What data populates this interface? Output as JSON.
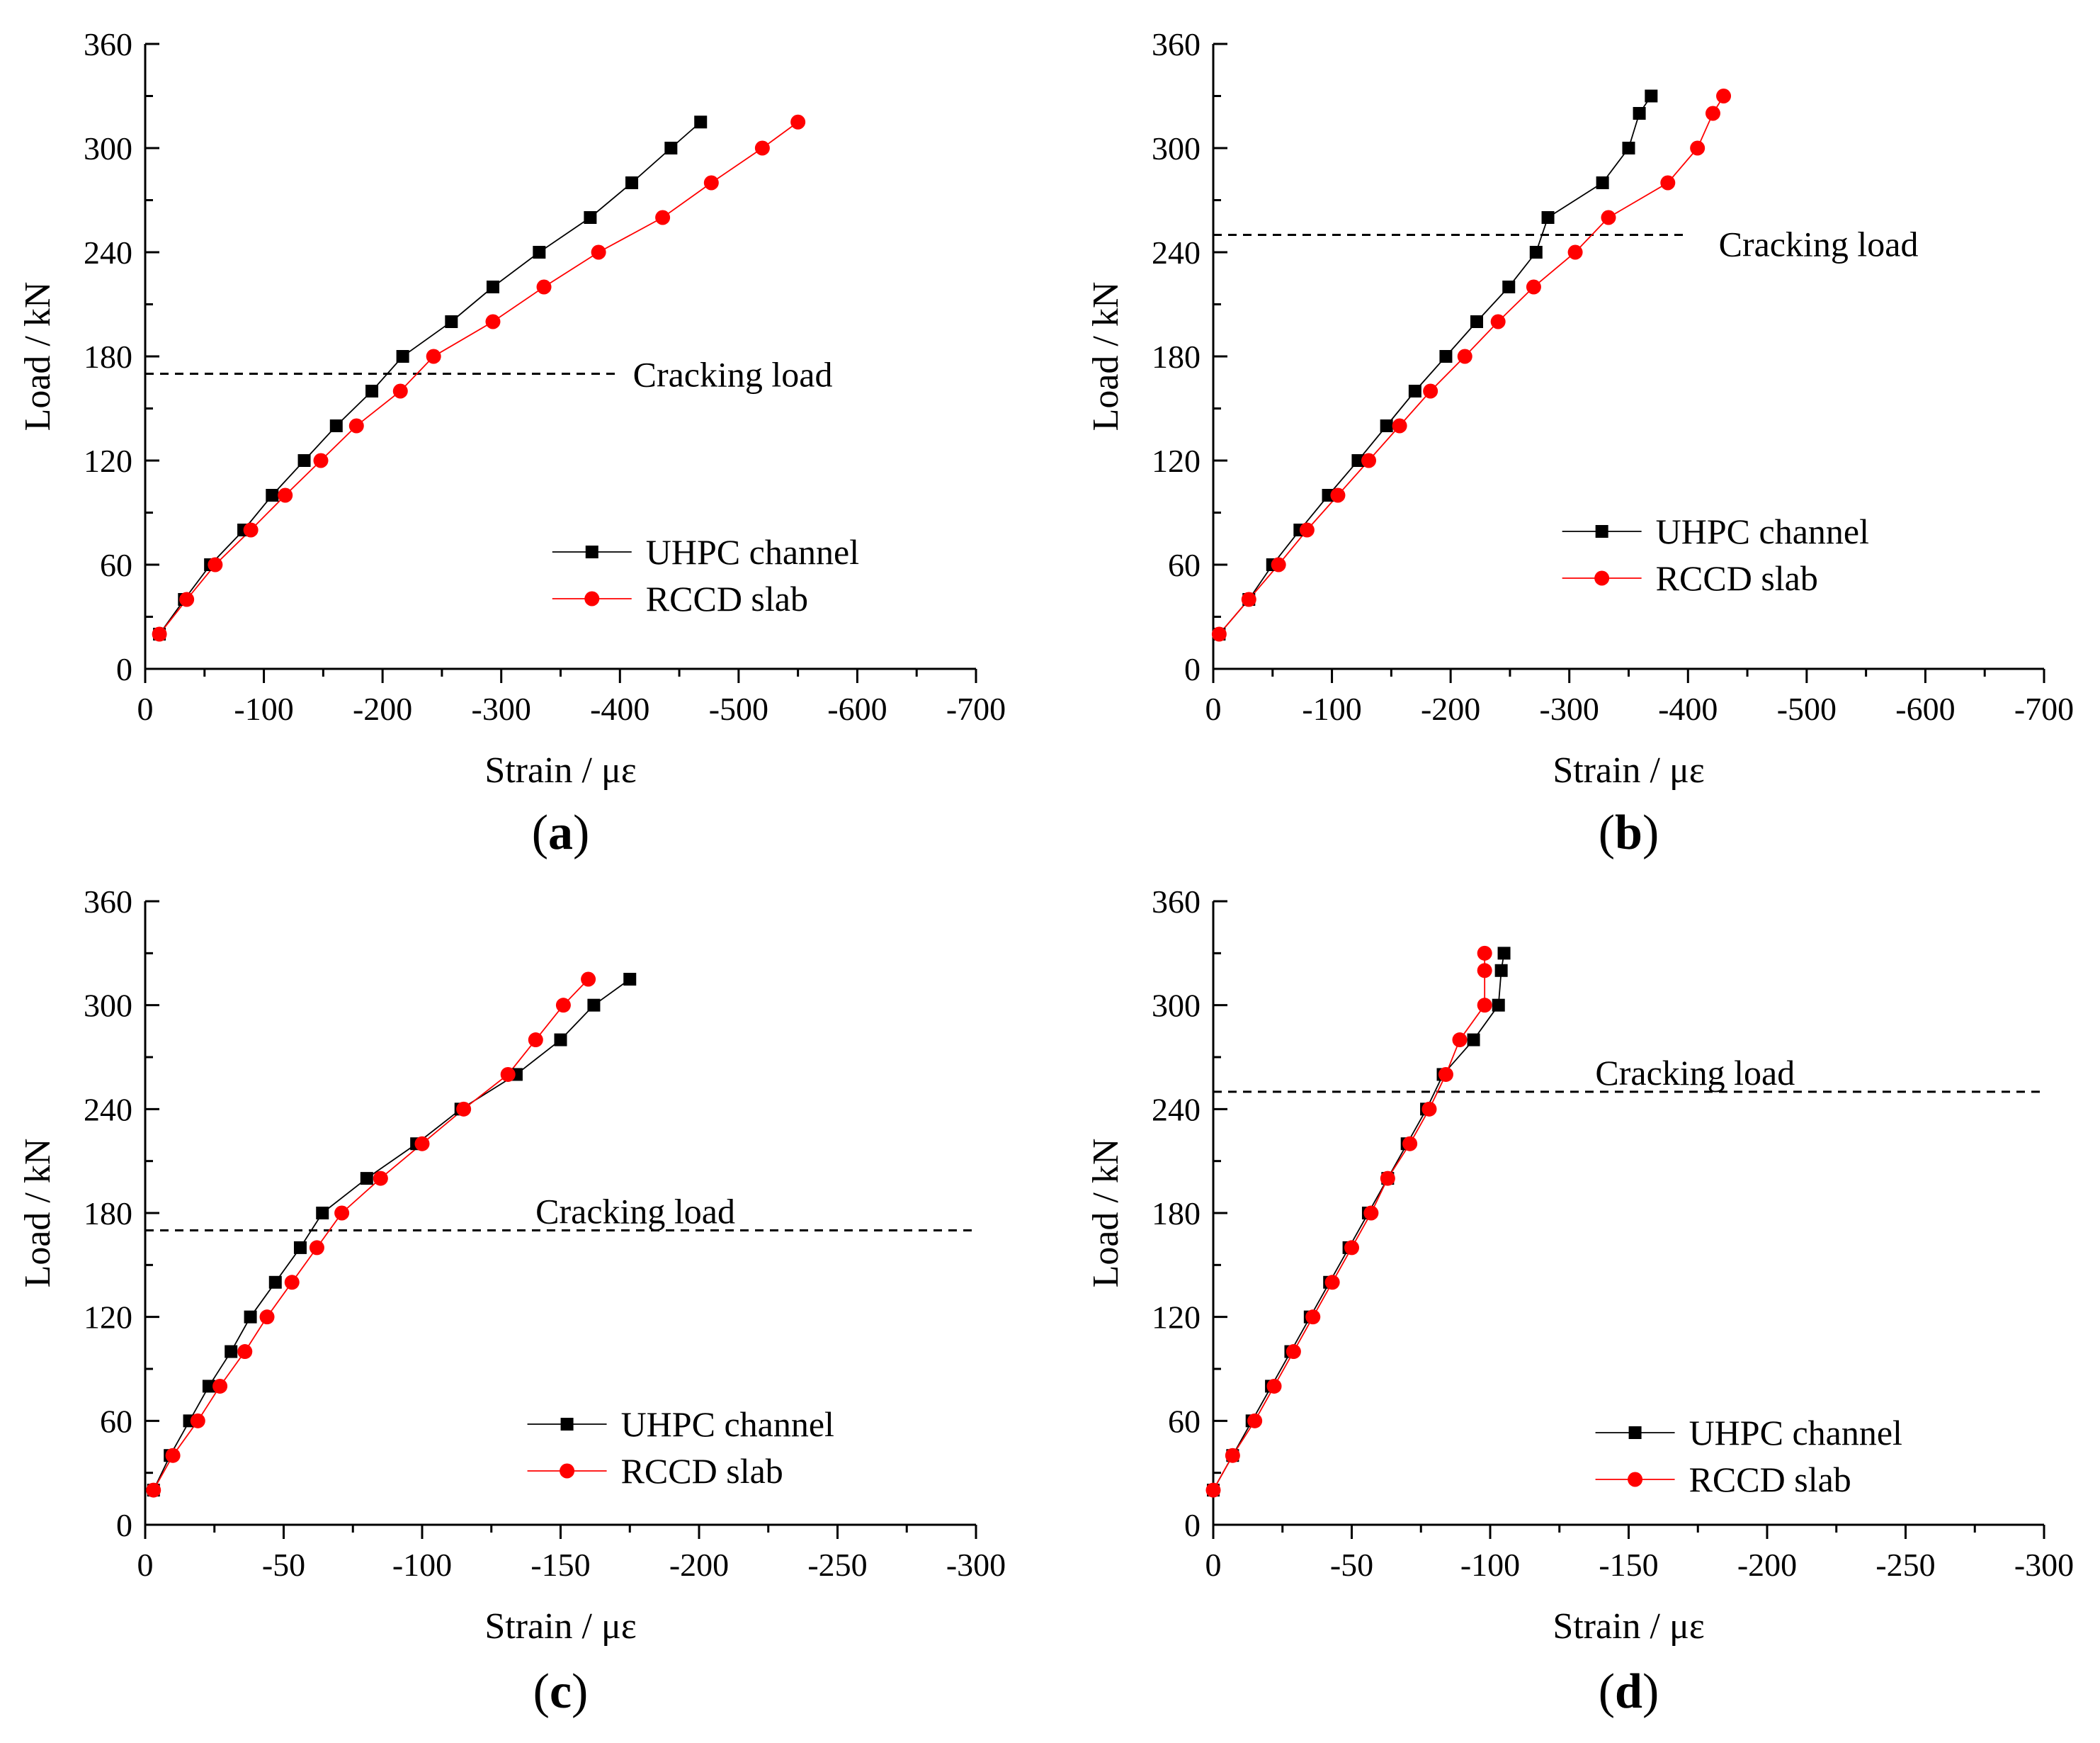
{
  "chart_data": [
    {
      "type": "line",
      "panel_label": "a",
      "xlabel": "Strain / με",
      "ylabel": "Load / kN",
      "xlim": [
        0,
        -700
      ],
      "ylim": [
        0,
        360
      ],
      "xticks": [
        0,
        -100,
        -200,
        -300,
        -400,
        -500,
        -600,
        -700
      ],
      "yticks": [
        0,
        60,
        120,
        180,
        240,
        300,
        360
      ],
      "xtick_labels": [
        "0",
        "-100",
        "-200",
        "-300",
        "-400",
        "-500",
        "-600",
        "-700"
      ],
      "ytick_labels": [
        "0",
        "60",
        "120",
        "180",
        "240",
        "300",
        "360"
      ],
      "legend_position": "lower-right",
      "cracking_load": {
        "label": "Cracking load",
        "value": 170,
        "text_position": "right"
      },
      "series": [
        {
          "name": "UHPC channel",
          "color": "#000000",
          "marker": "square",
          "x": [
            -12,
            -33,
            -55,
            -83,
            -107,
            -134,
            -161,
            -191,
            -217,
            -258,
            -293,
            -332,
            -375,
            -410,
            -443,
            -468
          ],
          "y": [
            20,
            40,
            60,
            80,
            100,
            120,
            140,
            160,
            180,
            200,
            220,
            240,
            260,
            280,
            300,
            315
          ]
        },
        {
          "name": "RCCD slab",
          "color": "#ff0000",
          "marker": "circle",
          "x": [
            -12,
            -35,
            -59,
            -89,
            -118,
            -148,
            -178,
            -215,
            -243,
            -293,
            -336,
            -382,
            -436,
            -477,
            -520,
            -550
          ],
          "y": [
            20,
            40,
            60,
            80,
            100,
            120,
            140,
            160,
            180,
            200,
            220,
            240,
            260,
            280,
            300,
            315
          ]
        }
      ]
    },
    {
      "type": "line",
      "panel_label": "b",
      "xlabel": "Strain / με",
      "ylabel": "Load / kN",
      "xlim": [
        0,
        -700
      ],
      "ylim": [
        0,
        360
      ],
      "xticks": [
        0,
        -100,
        -200,
        -300,
        -400,
        -500,
        -600,
        -700
      ],
      "yticks": [
        0,
        60,
        120,
        180,
        240,
        300,
        360
      ],
      "xtick_labels": [
        "0",
        "-100",
        "-200",
        "-300",
        "-400",
        "-500",
        "-600",
        "-700"
      ],
      "ytick_labels": [
        "0",
        "60",
        "120",
        "180",
        "240",
        "300",
        "360"
      ],
      "legend_position": "lower-right",
      "cracking_load": {
        "label": "Cracking load",
        "value": 250,
        "text_position": "right-below"
      },
      "series": [
        {
          "name": "UHPC channel",
          "color": "#000000",
          "marker": "square",
          "x": [
            -5,
            -30,
            -50,
            -73,
            -97,
            -122,
            -146,
            -170,
            -196,
            -222,
            -249,
            -272,
            -282,
            -328,
            -350,
            -359,
            -369
          ],
          "y": [
            20,
            40,
            60,
            80,
            100,
            120,
            140,
            160,
            180,
            200,
            220,
            240,
            260,
            280,
            300,
            320,
            330
          ]
        },
        {
          "name": "RCCD slab",
          "color": "#ff0000",
          "marker": "circle",
          "x": [
            -5,
            -30,
            -55,
            -79,
            -105,
            -131,
            -157,
            -183,
            -212,
            -240,
            -270,
            -305,
            -333,
            -383,
            -408,
            -421,
            -430
          ],
          "y": [
            20,
            40,
            60,
            80,
            100,
            120,
            140,
            160,
            180,
            200,
            220,
            240,
            260,
            280,
            300,
            320,
            330
          ]
        }
      ]
    },
    {
      "type": "line",
      "panel_label": "c",
      "xlabel": "Strain / με",
      "ylabel": "Load / kN",
      "xlim": [
        0,
        -300
      ],
      "ylim": [
        0,
        360
      ],
      "xticks": [
        0,
        -50,
        -100,
        -150,
        -200,
        -250,
        -300
      ],
      "yticks": [
        0,
        60,
        120,
        180,
        240,
        300,
        360
      ],
      "xtick_labels": [
        "0",
        "-50",
        "-100",
        "-150",
        "-200",
        "-250",
        "-300"
      ],
      "ytick_labels": [
        "0",
        "60",
        "120",
        "180",
        "240",
        "300",
        "360"
      ],
      "legend_position": "lower-right",
      "cracking_load": {
        "label": "Cracking load",
        "value": 170,
        "text_position": "above"
      },
      "series": [
        {
          "name": "UHPC channel",
          "color": "#000000",
          "marker": "square",
          "x": [
            -3,
            -9,
            -16,
            -23,
            -31,
            -38,
            -47,
            -56,
            -64,
            -80,
            -98,
            -114,
            -134,
            -150,
            -162,
            -175
          ],
          "y": [
            20,
            40,
            60,
            80,
            100,
            120,
            140,
            160,
            180,
            200,
            220,
            240,
            260,
            280,
            300,
            315
          ]
        },
        {
          "name": "RCCD slab",
          "color": "#ff0000",
          "marker": "circle",
          "x": [
            -3,
            -10,
            -19,
            -27,
            -36,
            -44,
            -53,
            -62,
            -71,
            -85,
            -100,
            -115,
            -131,
            -141,
            -151,
            -160
          ],
          "y": [
            20,
            40,
            60,
            80,
            100,
            120,
            140,
            160,
            180,
            200,
            220,
            240,
            260,
            280,
            300,
            315
          ]
        }
      ]
    },
    {
      "type": "line",
      "panel_label": "d",
      "xlabel": "Strain / με",
      "ylabel": "Load / kN",
      "xlim": [
        0,
        -300
      ],
      "ylim": [
        0,
        360
      ],
      "xticks": [
        0,
        -50,
        -100,
        -150,
        -200,
        -250,
        -300
      ],
      "yticks": [
        0,
        60,
        120,
        180,
        240,
        300,
        360
      ],
      "xtick_labels": [
        "0",
        "-50",
        "-100",
        "-150",
        "-200",
        "-250",
        "-300"
      ],
      "ytick_labels": [
        "0",
        "60",
        "120",
        "180",
        "240",
        "300",
        "360"
      ],
      "legend_position": "lower-right",
      "cracking_load": {
        "label": "Cracking load",
        "value": 250,
        "text_position": "above"
      },
      "series": [
        {
          "name": "UHPC channel",
          "color": "#000000",
          "marker": "square",
          "x": [
            0,
            -7,
            -14,
            -21,
            -28,
            -35,
            -42,
            -49,
            -56,
            -63,
            -70,
            -77,
            -83,
            -94,
            -103,
            -104,
            -105
          ],
          "y": [
            20,
            40,
            60,
            80,
            100,
            120,
            140,
            160,
            180,
            200,
            220,
            240,
            260,
            280,
            300,
            320,
            330
          ]
        },
        {
          "name": "RCCD slab",
          "color": "#ff0000",
          "marker": "circle",
          "x": [
            0,
            -7,
            -15,
            -22,
            -29,
            -36,
            -43,
            -50,
            -57,
            -63,
            -71,
            -78,
            -84,
            -89,
            -98,
            -98,
            -98
          ],
          "y": [
            20,
            40,
            60,
            80,
            100,
            120,
            140,
            160,
            180,
            200,
            220,
            240,
            260,
            280,
            300,
            320,
            330
          ]
        }
      ]
    }
  ]
}
